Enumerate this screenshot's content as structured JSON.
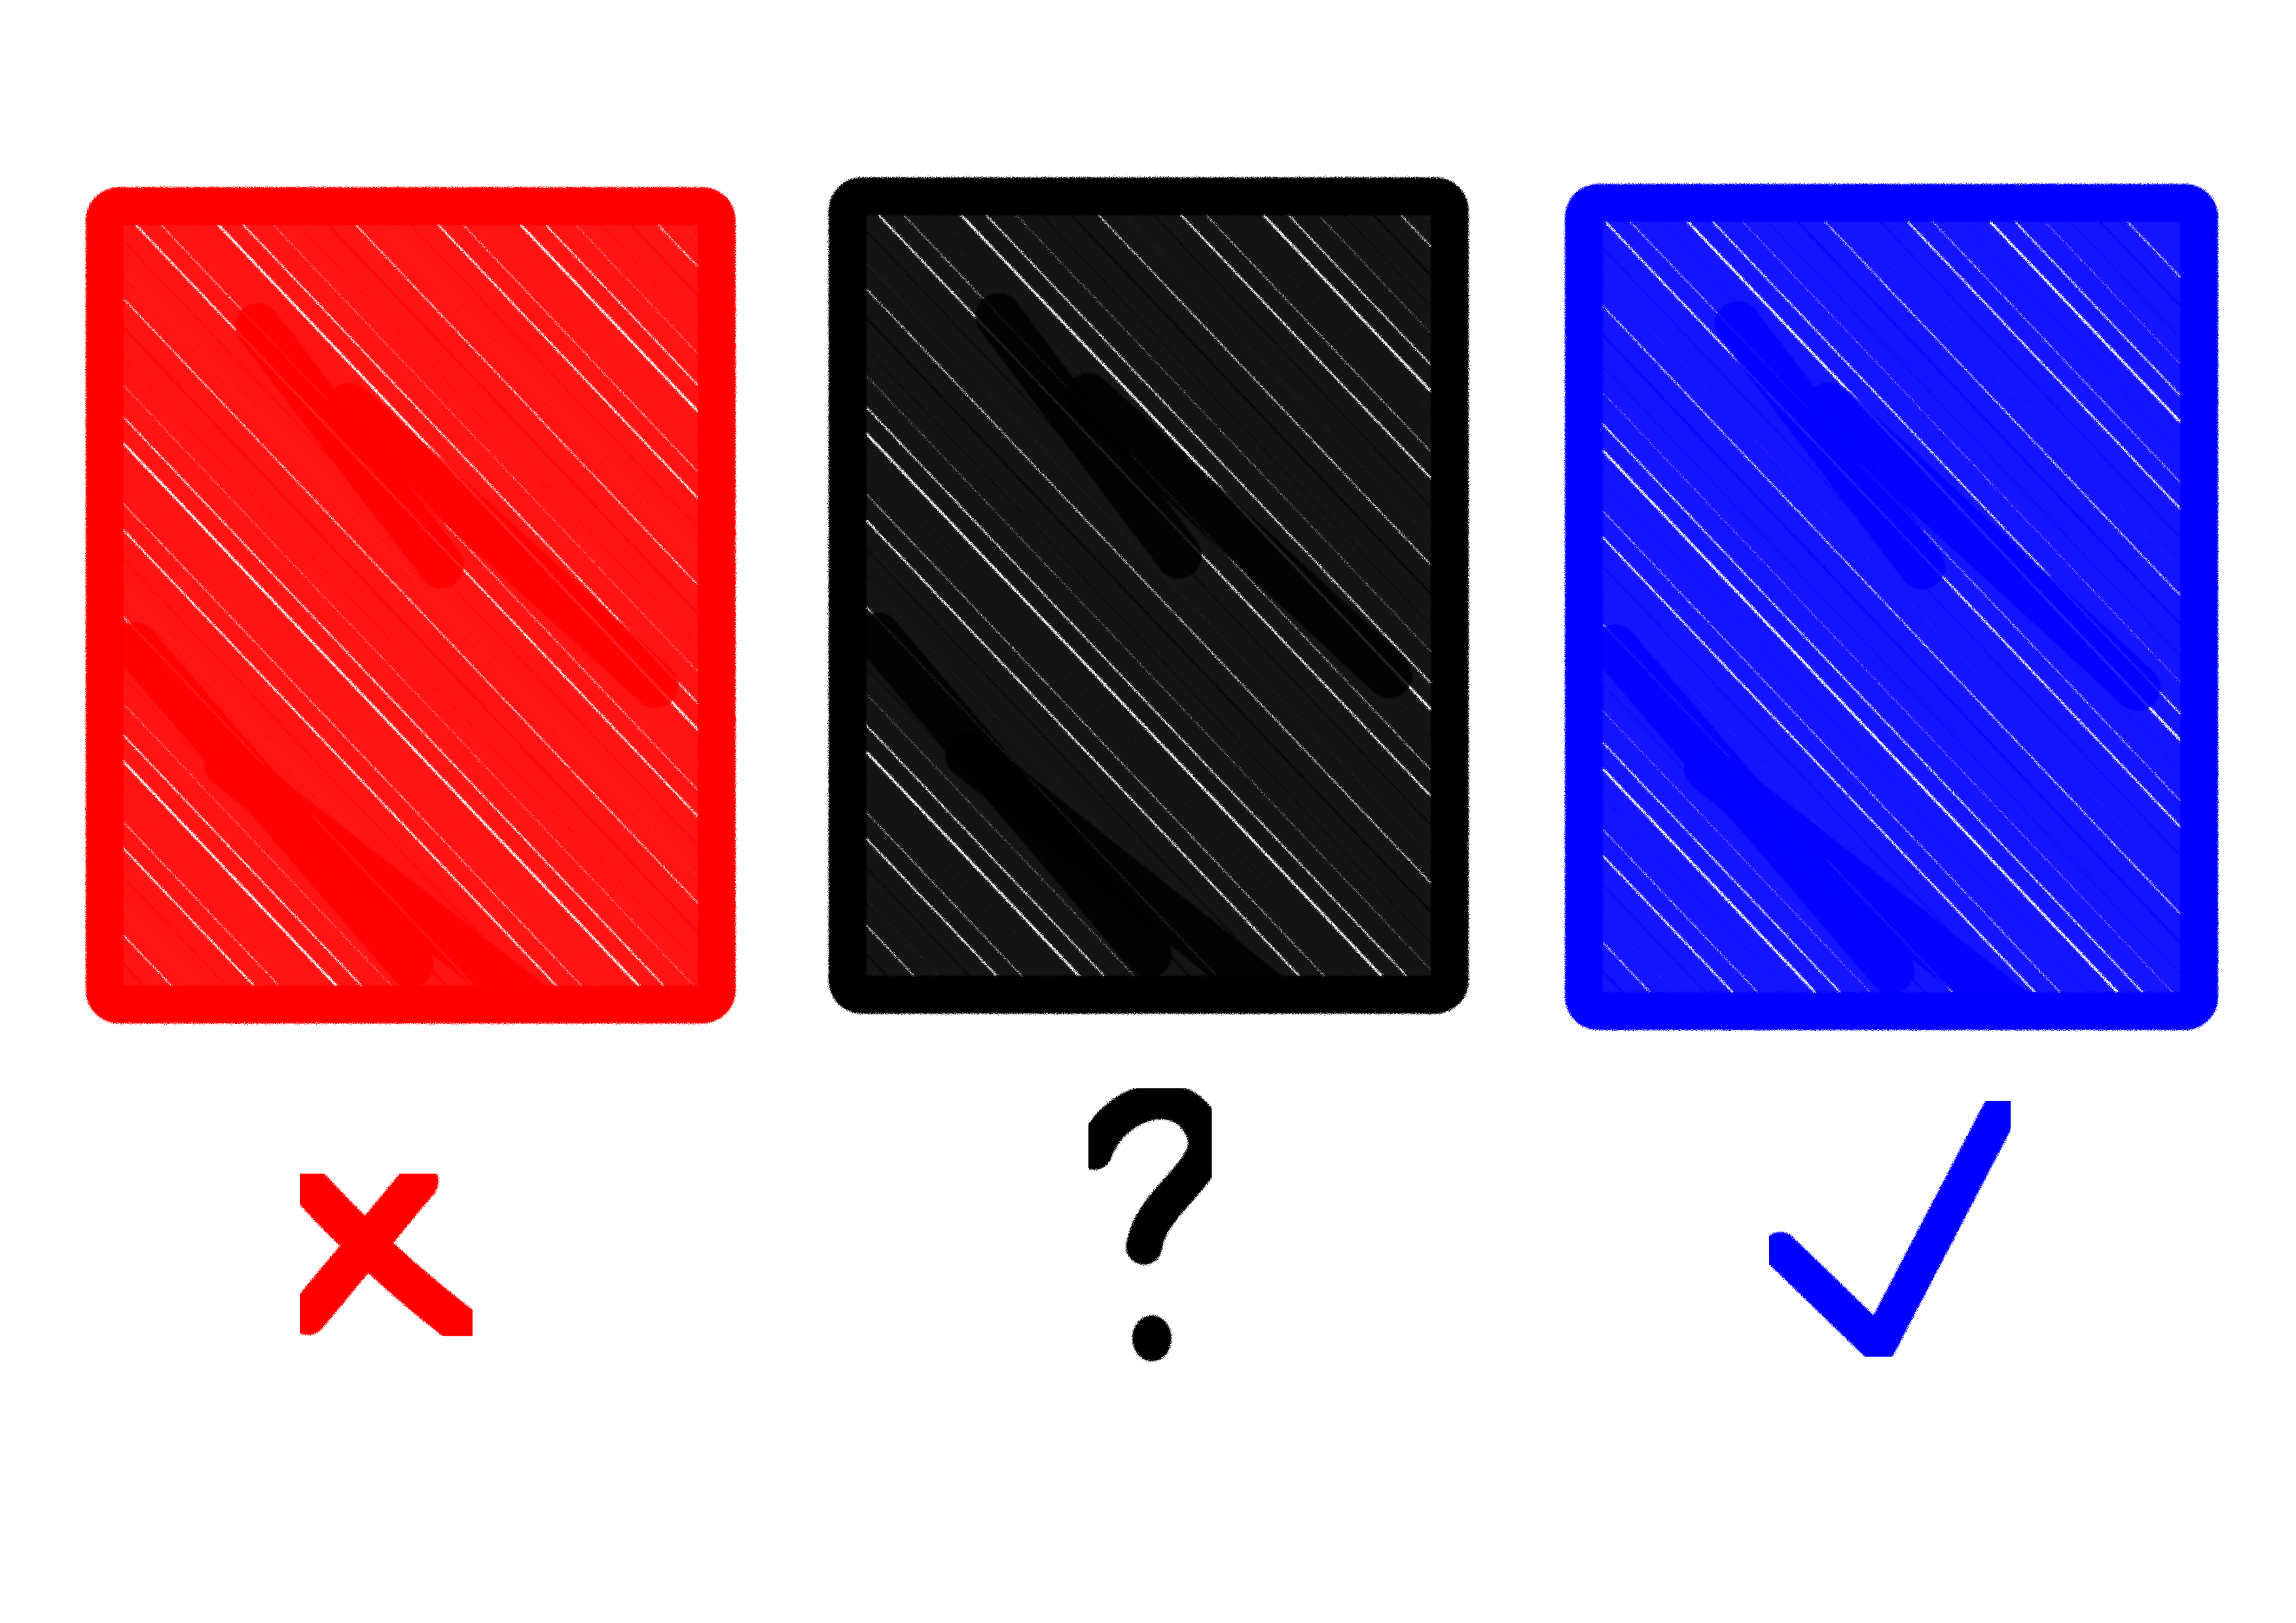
{
  "cards": [
    {
      "id": "red",
      "color": "#ff0000",
      "mark": "cross-icon"
    },
    {
      "id": "black",
      "color": "#000000",
      "mark": "question-mark-icon"
    },
    {
      "id": "blue",
      "color": "#0000ff",
      "mark": "check-mark-icon"
    }
  ]
}
